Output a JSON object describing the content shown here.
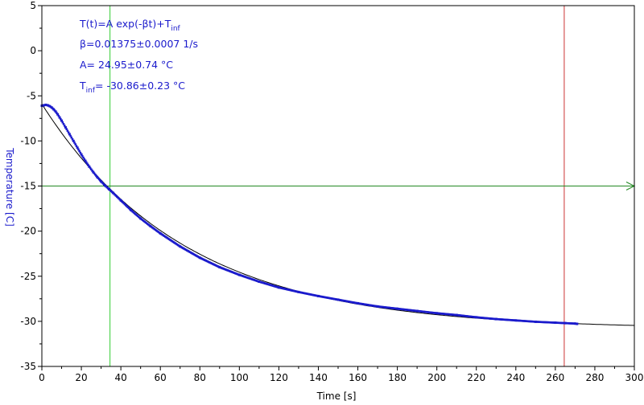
{
  "chart_data": {
    "type": "scatter",
    "xlabel": "Time [s]",
    "ylabel": "Temperature [C]",
    "xlim": [
      0,
      300
    ],
    "ylim": [
      -35,
      5
    ],
    "x_ticks": [
      0,
      20,
      40,
      60,
      80,
      100,
      120,
      140,
      160,
      180,
      200,
      220,
      240,
      260,
      280,
      300
    ],
    "y_ticks": [
      5,
      0,
      -5,
      -10,
      -15,
      -20,
      -25,
      -30,
      -35
    ],
    "grid": false,
    "annotations": {
      "formula_main": "T(t)=A exp(-βt)+T",
      "formula_sub": "inf",
      "beta": "β=0.01375±0.0007 1/s",
      "amplitude": "A= 24.95±0.74 °C",
      "tinf_main": "T",
      "tinf_sub": "inf",
      "tinf_value": "= -30.86±0.23 °C"
    },
    "fit": {
      "A": 24.95,
      "beta": 0.01375,
      "T_inf": -30.86,
      "t_end": 300
    },
    "markers": {
      "cursor_green_x": 34.5,
      "cursor_red_x": 264.5,
      "level_y": -15
    },
    "measured": {
      "x": [
        0,
        1,
        2,
        3,
        4,
        5,
        6,
        7,
        8,
        9,
        10,
        12,
        14,
        16,
        18,
        20,
        22,
        24,
        26,
        28,
        30,
        32,
        34,
        36,
        40,
        45,
        50,
        55,
        60,
        70,
        80,
        90,
        100,
        110,
        120,
        130,
        140,
        150,
        160,
        170,
        180,
        190,
        200,
        210,
        220,
        230,
        240,
        250,
        260,
        265,
        270,
        271
      ],
      "y": [
        -6.1,
        -6.05,
        -6.0,
        -6.05,
        -6.15,
        -6.3,
        -6.5,
        -6.75,
        -7.05,
        -7.4,
        -7.75,
        -8.5,
        -9.25,
        -10.0,
        -10.75,
        -11.5,
        -12.2,
        -12.85,
        -13.45,
        -14.0,
        -14.5,
        -14.95,
        -15.35,
        -15.75,
        -16.6,
        -17.65,
        -18.6,
        -19.45,
        -20.25,
        -21.7,
        -22.95,
        -24.0,
        -24.85,
        -25.6,
        -26.25,
        -26.75,
        -27.2,
        -27.6,
        -28.0,
        -28.35,
        -28.6,
        -28.85,
        -29.1,
        -29.3,
        -29.55,
        -29.75,
        -29.9,
        -30.05,
        -30.15,
        -30.2,
        -30.25,
        -30.28
      ]
    },
    "colors": {
      "measured": "#1a1acc",
      "fit": "#000000",
      "green_cursor": "#33cc33",
      "red_cursor": "#cc3333",
      "level_line": "#228822",
      "annotation_text": "#1a1acc",
      "ylabel": "#1a1acc"
    }
  }
}
